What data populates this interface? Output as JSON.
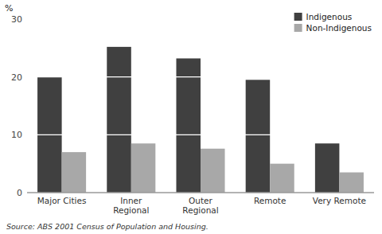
{
  "chart_data": {
    "type": "bar",
    "categories": [
      "Major Cities",
      "Inner\nRegional",
      "Outer\nRegional",
      "Remote",
      "Very Remote"
    ],
    "series": [
      {
        "name": "Indigenous",
        "color": "#404040",
        "values": [
          20.0,
          25.2,
          23.2,
          19.5,
          8.5
        ]
      },
      {
        "name": "Non-Indigenous",
        "color": "#a8a8a8",
        "values": [
          7.0,
          8.5,
          7.6,
          5.0,
          3.5
        ]
      }
    ],
    "y_label": "%",
    "ylim": [
      0,
      30
    ],
    "yticks": [
      0,
      10,
      20,
      30
    ],
    "grid": true,
    "legend": "upper right",
    "annotations": [
      "Source: ABS 2001 Census of Population and Housing."
    ]
  }
}
